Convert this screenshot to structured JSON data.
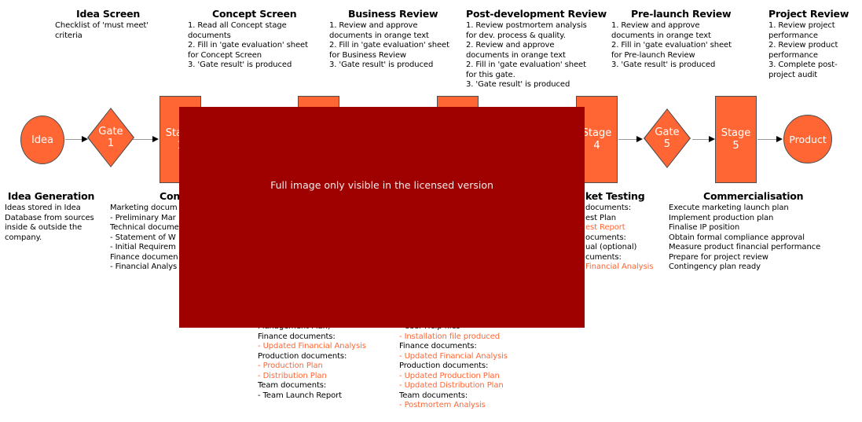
{
  "watermark": {
    "text": "Full image only visible in the licensed version"
  },
  "colors": {
    "shape_fill": "#ff6633",
    "shape_border": "#4d4d4d",
    "overlay_bg": "#9f0000",
    "watermark_text": "#f2eaea",
    "orange_text": "#ff6633",
    "connector_line": "#999999",
    "arrowhead": "#000000",
    "text": "#000000"
  },
  "top_row": [
    {
      "title": "Idea Screen",
      "lines": [
        "Checklist of 'must meet'",
        "criteria"
      ]
    },
    {
      "title": "Concept Screen",
      "lines": [
        "1. Read all Concept stage",
        "documents",
        "2. Fill in 'gate evaluation' sheet",
        "for Concept Screen",
        "3. 'Gate result' is produced"
      ]
    },
    {
      "title": "Business Review",
      "lines": [
        "1. Review and approve",
        "documents in orange text",
        "2. Fill in 'gate evaluation' sheet",
        "for Business Review",
        "3. 'Gate result' is produced"
      ]
    },
    {
      "title": "Post-development Review",
      "lines": [
        "1. Review postmortem analysis",
        "for dev. process & quality.",
        "2. Review and approve",
        "documents in orange text",
        "2. Fill in 'gate evaluation' sheet",
        "for this gate.",
        "3. 'Gate result' is produced"
      ]
    },
    {
      "title": "Pre-launch Review",
      "lines": [
        "1. Review and approve",
        "documents in orange text",
        "2. Fill in 'gate evaluation' sheet",
        "for Pre-launch Review",
        "3. 'Gate result' is produced"
      ]
    },
    {
      "title": "Project Review",
      "lines": [
        "1. Review project",
        "performance",
        "2. Review product",
        "performance",
        "3. Complete post-",
        "project audit"
      ]
    }
  ],
  "flow": {
    "idea_label": "Idea",
    "gate1": {
      "word": "Gate",
      "num": "1"
    },
    "gate5": {
      "word": "Gate",
      "num": "5"
    },
    "stages": [
      {
        "word": "Stage",
        "num": "1"
      },
      {
        "word": "",
        "num": ""
      },
      {
        "word": "",
        "num": ""
      },
      {
        "word": "Stage",
        "num": "4"
      },
      {
        "word": "Stage",
        "num": "5"
      }
    ],
    "product_label": "Product"
  },
  "bottom_row": [
    {
      "title": "Idea Generation",
      "lines": [
        "Ideas stored in Idea",
        "Database from sources",
        "inside & outside the",
        "company."
      ]
    },
    {
      "title": "Con",
      "lines": [
        "Marketing docum",
        "- Preliminary Mar",
        "Technical docume",
        "- Statement of W",
        "- Initial Requirem",
        "Finance documen",
        "- Financial Analys"
      ]
    },
    {
      "title": "ket Testing",
      "lines": [
        "documents:",
        "est Plan",
        {
          "t": "est Report",
          "c": "o"
        },
        "ocuments:",
        "ual (optional)",
        "cuments:",
        {
          "t": "Financial Analysis",
          "c": "o"
        }
      ]
    },
    {
      "title": "Commercialisation",
      "lines": [
        "Execute marketing launch plan",
        "Implement production plan",
        "Finalise IP position",
        "Obtain formal compliance approval",
        "Measure product financial performance",
        "Prepare for project review",
        "Contingency plan ready"
      ]
    },
    {
      "title": "",
      "lines": [
        "Management Plan)",
        "Finance documents:",
        {
          "t": "- Updated Financial Analysis",
          "c": "o"
        },
        "Production documents:",
        {
          "t": "- Production Plan",
          "c": "o"
        },
        {
          "t": "- Distribution Plan",
          "c": "o"
        },
        "Team documents:",
        "- Team Launch Report"
      ]
    },
    {
      "title": "",
      "lines": [
        "- User Help files",
        {
          "t": "- Installation file produced",
          "c": "o"
        },
        "Finance documents:",
        {
          "t": "- Updated Financial Analysis",
          "c": "o"
        },
        "Production documents:",
        {
          "t": "- Updated Production Plan",
          "c": "o"
        },
        {
          "t": "- Updated Distribution Plan",
          "c": "o"
        },
        "Team documents:",
        {
          "t": "- Postmortem Analysis",
          "c": "o"
        }
      ]
    }
  ]
}
